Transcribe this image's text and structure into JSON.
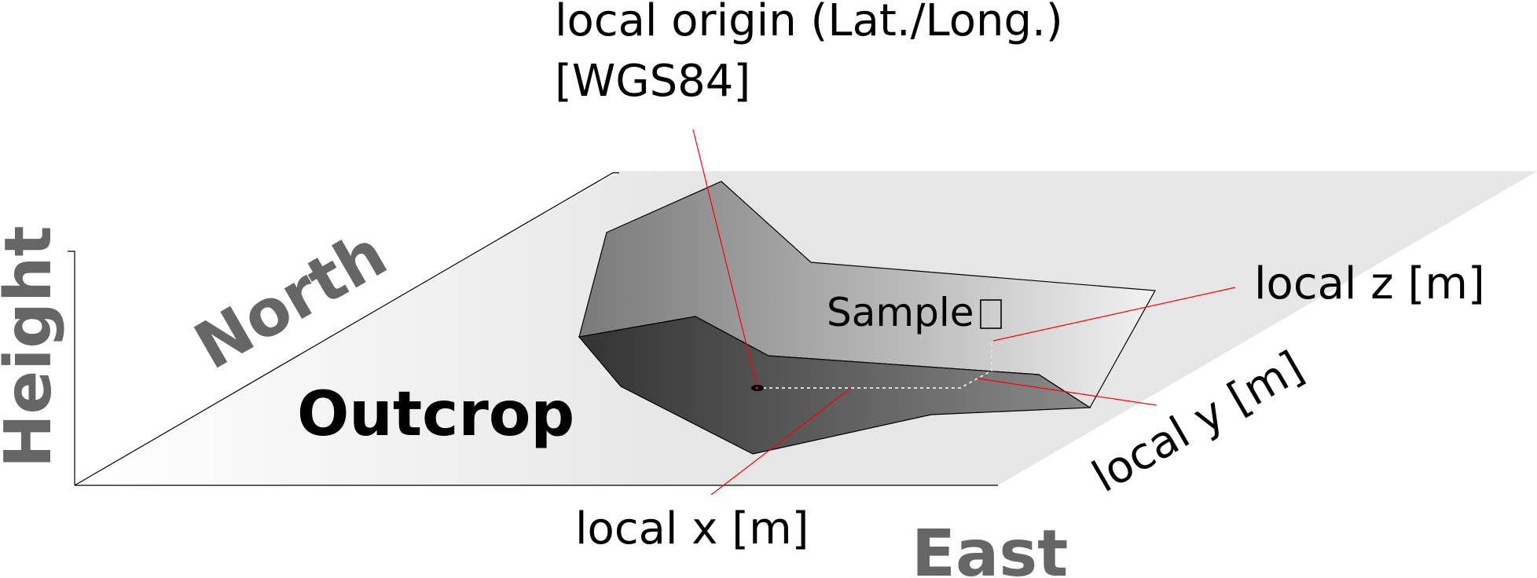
{
  "labels": {
    "origin_line1": "local origin (Lat./Long.)",
    "origin_line2": "[WGS84]",
    "local_z": "local z [m]",
    "local_y": "local y [m]",
    "local_x": "local x [m]",
    "sample": "Sample",
    "outcrop": "Outcrop"
  },
  "axes": {
    "height": "Height",
    "north": "North",
    "east": "East"
  },
  "colors": {
    "leader_lines": "#ff0000",
    "axis_words": "#666666",
    "ground_plane": "#e6e6e6"
  }
}
